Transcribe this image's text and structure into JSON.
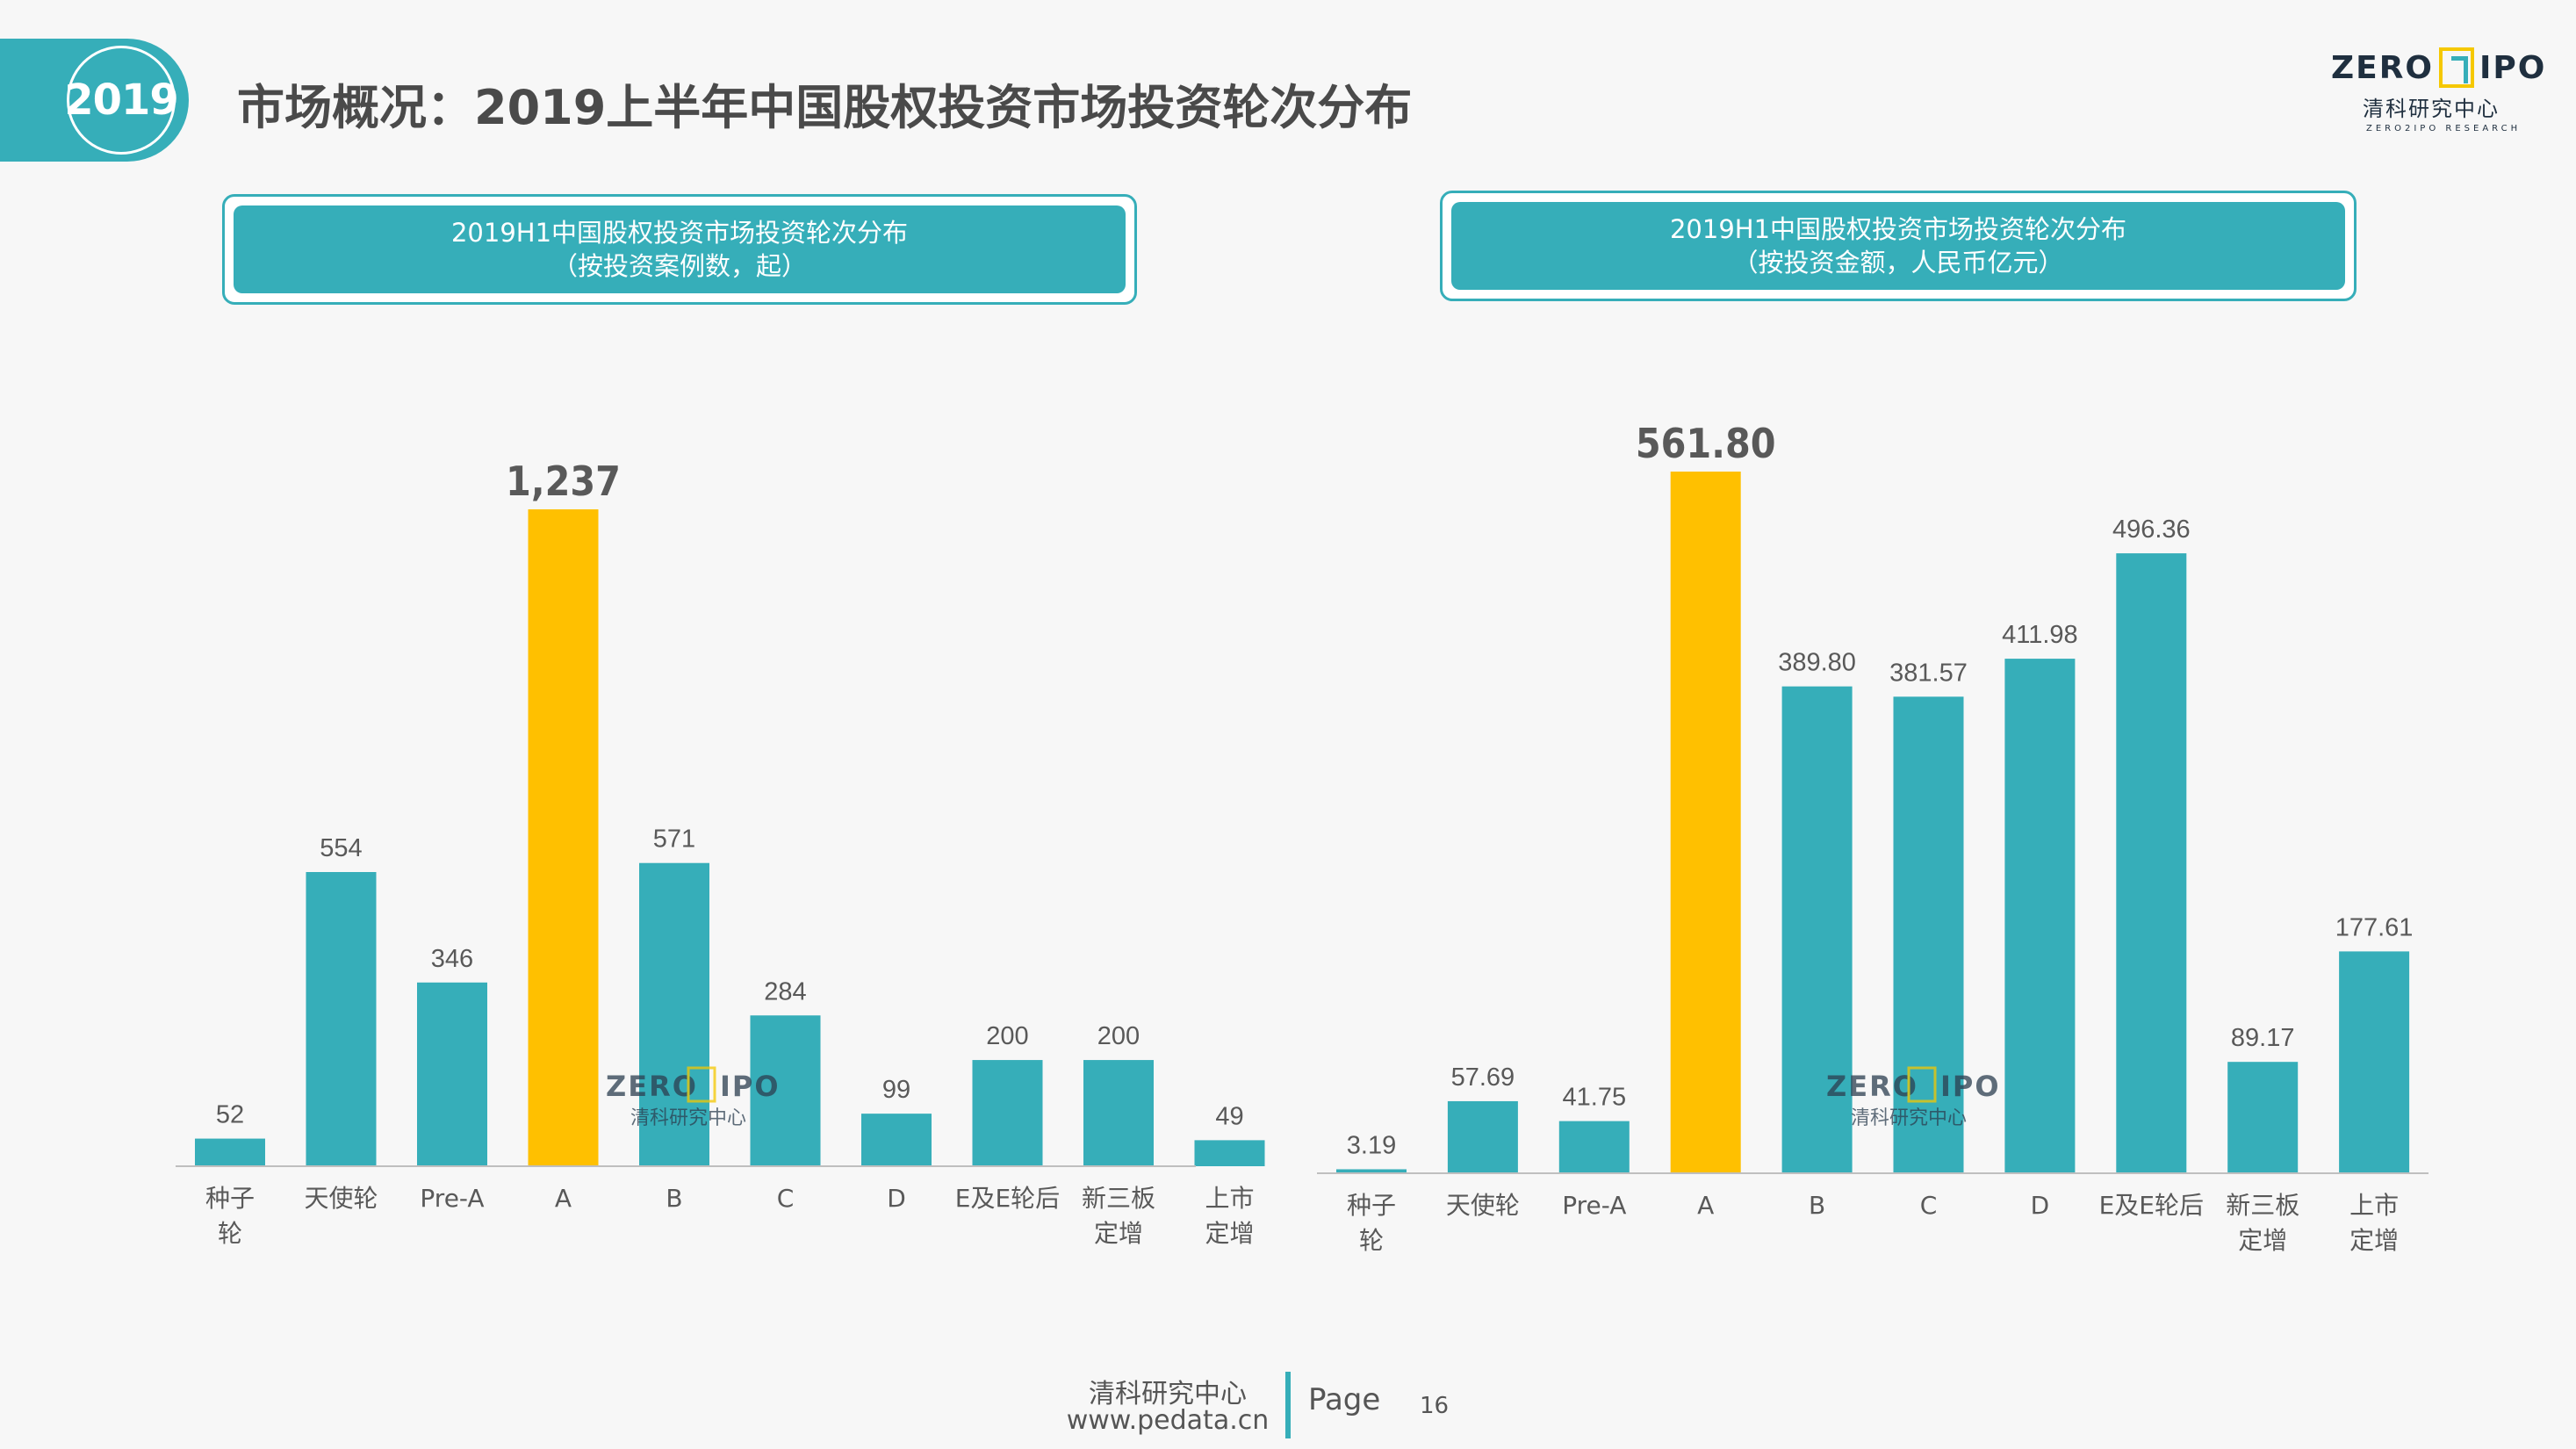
{
  "header": {
    "year": "2019",
    "title": "市场概况：2019上半年中国股权投资市场投资轮次分布"
  },
  "logo": {
    "left_text": "ZERO",
    "mark_text": "2",
    "right_text": "IPO",
    "sub_text": "清科研究中心",
    "tiny_text": "ZERO2IPO RESEARCH"
  },
  "chart_data": [
    {
      "type": "bar",
      "title": "2019H1中国股权投资市场投资轮次分布",
      "subtitle": "（按投资案例数，起）",
      "categories": [
        [
          "种子",
          "轮"
        ],
        [
          "天使轮"
        ],
        [
          "Pre-A"
        ],
        [
          "A"
        ],
        [
          "B"
        ],
        [
          "C"
        ],
        [
          "D"
        ],
        [
          "E及E轮后"
        ],
        [
          "新三板",
          "定增"
        ],
        [
          "上市",
          "定增"
        ]
      ],
      "values": [
        52,
        554,
        346,
        1237,
        571,
        284,
        99,
        200,
        200,
        49
      ],
      "value_labels": [
        "52",
        "554",
        "346",
        "1,237",
        "571",
        "284",
        "99",
        "200",
        "200",
        "49"
      ],
      "highlight_index": 3,
      "colors": {
        "bar": "#36aeb9",
        "highlight": "#ffc000",
        "axis": "#bfbfbf",
        "label": "#595959",
        "highlight_label": "#595959"
      },
      "ylim": [
        0,
        1237
      ],
      "grid": false,
      "legend": "none"
    },
    {
      "type": "bar",
      "title": "2019H1中国股权投资市场投资轮次分布",
      "subtitle": "（按投资金额，人民币亿元）",
      "categories": [
        [
          "种子",
          "轮"
        ],
        [
          "天使轮"
        ],
        [
          "Pre-A"
        ],
        [
          "A"
        ],
        [
          "B"
        ],
        [
          "C"
        ],
        [
          "D"
        ],
        [
          "E及E轮后"
        ],
        [
          "新三板",
          "定增"
        ],
        [
          "上市",
          "定增"
        ]
      ],
      "values": [
        3.19,
        57.69,
        41.75,
        561.8,
        389.8,
        381.57,
        411.98,
        496.36,
        89.17,
        177.61
      ],
      "value_labels": [
        "3.19",
        "57.69",
        "41.75",
        "561.80",
        "389.80",
        "381.57",
        "411.98",
        "496.36",
        "89.17",
        "177.61"
      ],
      "highlight_index": 3,
      "colors": {
        "bar": "#36aeb9",
        "highlight": "#ffc000",
        "axis": "#bfbfbf",
        "label": "#595959",
        "highlight_label": "#595959"
      },
      "ylim": [
        0,
        561.8
      ],
      "grid": false,
      "legend": "none"
    }
  ],
  "watermark": {
    "left_text": "ZERO",
    "mark_text": "2",
    "right_text": "IPO",
    "sub_text": "清科研究中心"
  },
  "footer": {
    "org": "清科研究中心",
    "url": "www.pedata.cn",
    "page_label": "Page",
    "page_number": "16"
  }
}
